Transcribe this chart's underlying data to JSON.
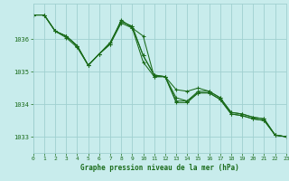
{
  "title": "Graphe pression niveau de la mer (hPa)",
  "background_color": "#c8ecec",
  "grid_color": "#a0d0d0",
  "line_color": "#1a6b1a",
  "xlim": [
    0,
    23
  ],
  "ylim": [
    1032.5,
    1037.1
  ],
  "yticks": [
    1033,
    1034,
    1035,
    1036
  ],
  "xticks": [
    0,
    1,
    2,
    3,
    4,
    5,
    6,
    7,
    8,
    9,
    10,
    11,
    12,
    13,
    14,
    15,
    16,
    17,
    18,
    19,
    20,
    21,
    22,
    23
  ],
  "series": [
    [
      1036.75,
      1036.75,
      1036.25,
      1036.1,
      1035.8,
      1035.2,
      1035.55,
      1035.85,
      1036.5,
      1036.35,
      1036.1,
      1034.85,
      1034.85,
      1034.1,
      1034.1,
      1034.35,
      1034.35,
      1034.15,
      1033.7,
      1033.65,
      1033.55,
      1033.5,
      1033.05,
      1033.0
    ],
    [
      1036.75,
      1036.75,
      1036.25,
      1036.1,
      1035.8,
      1035.2,
      1035.55,
      1035.85,
      1036.6,
      1036.35,
      1035.3,
      1034.85,
      1034.85,
      1034.05,
      1034.05,
      1034.35,
      1034.35,
      1034.15,
      1033.7,
      1033.65,
      1033.55,
      1033.5,
      1033.05,
      1033.0
    ],
    [
      1036.75,
      1036.75,
      1036.25,
      1036.1,
      1035.8,
      1035.2,
      1035.55,
      1035.9,
      1036.55,
      1036.4,
      1035.5,
      1034.9,
      1034.85,
      1034.2,
      1034.1,
      1034.4,
      1034.4,
      1034.2,
      1033.75,
      1033.7,
      1033.6,
      1033.55,
      1033.05,
      1033.0
    ],
    [
      1036.75,
      1036.75,
      1036.25,
      1036.05,
      1035.75,
      1035.2,
      1035.55,
      1035.9,
      1036.55,
      1036.4,
      1035.5,
      1034.9,
      1034.85,
      1034.45,
      1034.4,
      1034.5,
      1034.4,
      1034.2,
      1033.75,
      1033.7,
      1033.6,
      1033.55,
      1033.05,
      1033.0
    ]
  ]
}
